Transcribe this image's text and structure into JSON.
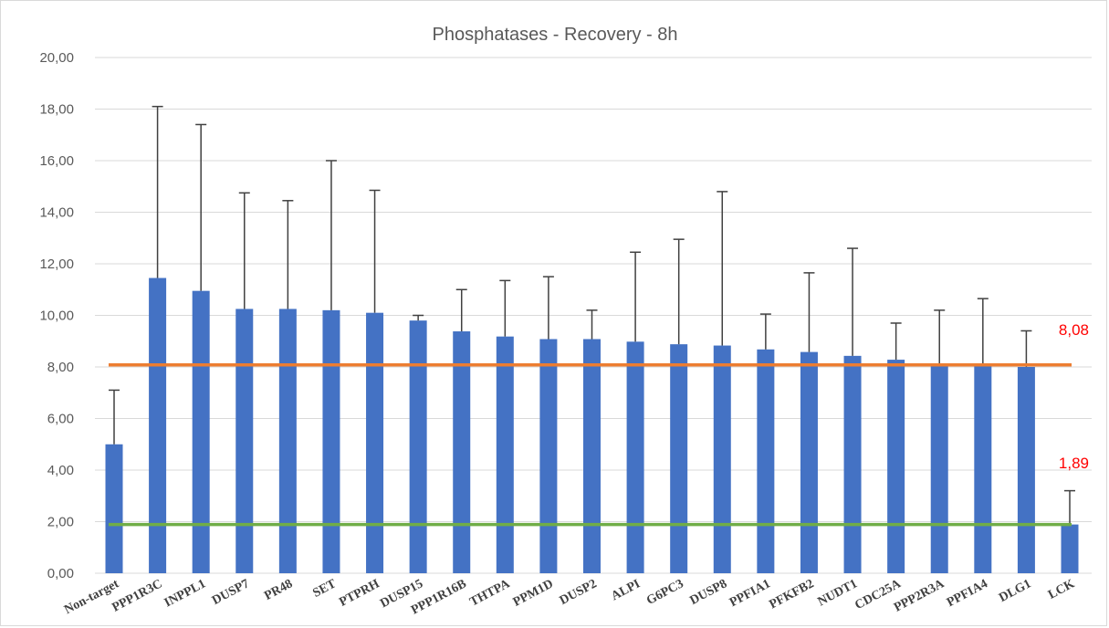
{
  "chart_data": {
    "type": "bar",
    "title": "Phosphatases - Recovery - 8h",
    "xlabel": "",
    "ylabel": "",
    "ylim": [
      0,
      20
    ],
    "yticks": [
      0,
      2,
      4,
      6,
      8,
      10,
      12,
      14,
      16,
      18,
      20
    ],
    "ytick_labels": [
      "0,00",
      "2,00",
      "4,00",
      "6,00",
      "8,00",
      "10,00",
      "12,00",
      "14,00",
      "16,00",
      "18,00",
      "20,00"
    ],
    "grid": true,
    "legend": "none",
    "categories": [
      "Non-target",
      "PPP1R3C",
      "INPPL1",
      "DUSP7",
      "PR48",
      "SET",
      "PTPRH",
      "DUSP15",
      "PPP1R16B",
      "THTPA",
      "PPM1D",
      "DUSP2",
      "ALPI",
      "G6PC3",
      "DUSP8",
      "PPFIA1",
      "PFKFB2",
      "NUDT1",
      "CDC25A",
      "PPP2R3A",
      "PPFIA4",
      "DLG1",
      "LCK"
    ],
    "values": [
      5.0,
      11.45,
      10.95,
      10.25,
      10.25,
      10.2,
      10.1,
      9.8,
      9.38,
      9.18,
      9.08,
      9.08,
      8.98,
      8.88,
      8.83,
      8.68,
      8.58,
      8.43,
      8.28,
      8.1,
      8.08,
      8.0,
      1.89
    ],
    "error_upper": [
      7.1,
      18.1,
      17.4,
      14.75,
      14.45,
      16.0,
      14.85,
      10.0,
      11.0,
      11.35,
      11.5,
      10.2,
      12.45,
      12.95,
      14.8,
      10.05,
      11.65,
      12.6,
      9.7,
      10.2,
      10.65,
      9.4,
      3.2
    ],
    "reference_lines": [
      {
        "value": 8.08,
        "label": "8,08",
        "color": "#ed7d31"
      },
      {
        "value": 1.89,
        "label": "1,89",
        "color": "#70ad47"
      }
    ],
    "colors": {
      "bar": "#4472c4",
      "error_bar": "#404040",
      "grid": "#d9d9d9",
      "label": "#ff0000"
    }
  }
}
